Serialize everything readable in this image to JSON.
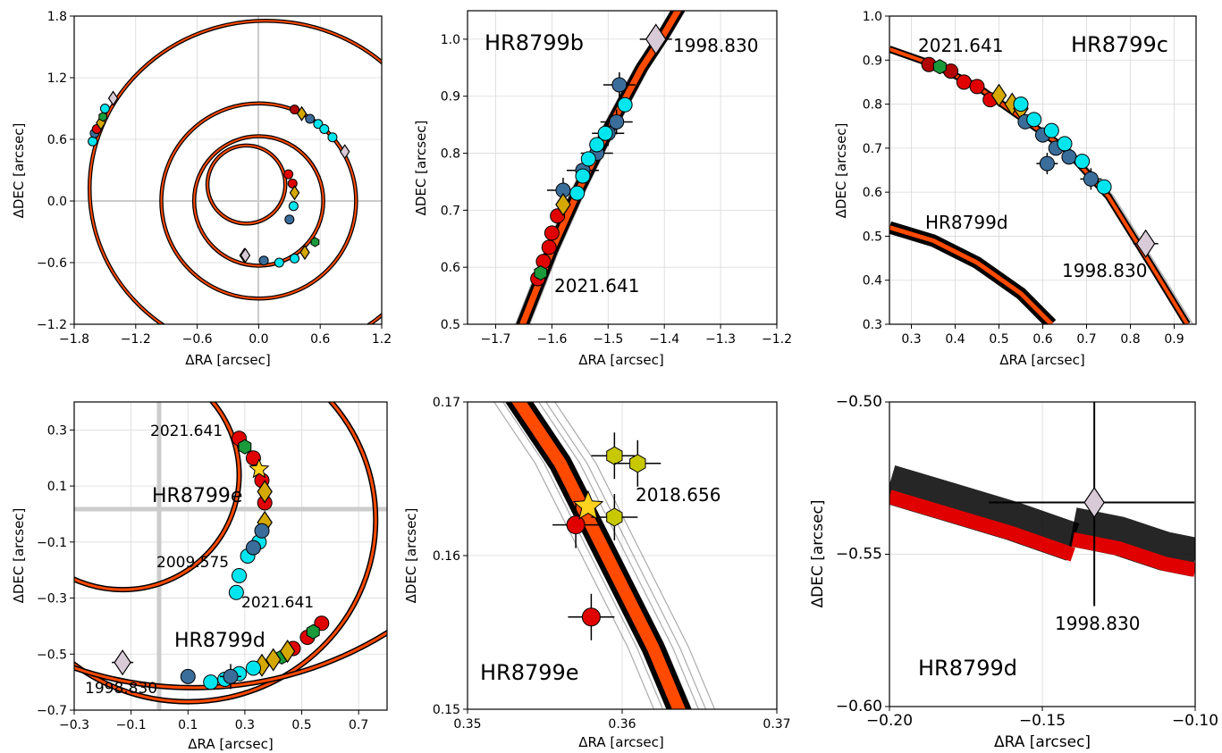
{
  "colors": {
    "orbit_outline": "#000000",
    "orbit_fill": "#ff4a00",
    "orbit_red": "#e00000",
    "old_astrometry": "#3a6d9a",
    "new_astrometry": "#00e5ee",
    "red_points": "#e00000",
    "dark_red_points": "#b00000",
    "gold_diamonds": "#d4a800",
    "green_hexagons": "#1a9a3a",
    "yellow_hexagons": "#c8c800",
    "star": "#ffd21f",
    "first_epoch_diamond": "#d8cad6"
  },
  "chart_data": [
    {
      "type": "scatter",
      "panel": "all-planets",
      "xlabel": "ΔRA [arcsec]",
      "ylabel": "ΔDEC [arcsec]",
      "xlim": [
        -1.8,
        1.2
      ],
      "ylim": [
        -1.2,
        1.8
      ],
      "xticks": [
        "−1.8",
        "−1.2",
        "−0.6",
        "0.0",
        "0.6",
        "1.2"
      ],
      "yticks": [
        "−1.2",
        "−0.6",
        "0.0",
        "0.6",
        "1.2",
        "1.8"
      ],
      "grid": true,
      "orbits": [
        {
          "planet": "b",
          "semi_major": 1.72,
          "center": [
            0.07,
            0.12
          ]
        },
        {
          "planet": "c",
          "semi_major": 0.95,
          "center": [
            0.0,
            0.0
          ]
        },
        {
          "planet": "d",
          "semi_major": 0.63,
          "center": [
            0.0,
            0.0
          ]
        },
        {
          "planet": "e",
          "semi_major": 0.38,
          "center": [
            -0.12,
            0.16
          ]
        }
      ],
      "series": [
        {
          "group": "b",
          "points": [
            [
              -1.62,
              0.58
            ],
            [
              -1.6,
              0.66
            ],
            [
              -1.58,
              0.7
            ],
            [
              -1.54,
              0.76
            ],
            [
              -1.52,
              0.82
            ],
            [
              -1.5,
              0.9
            ]
          ]
        },
        {
          "group": "c",
          "points": [
            [
              0.35,
              0.89
            ],
            [
              0.42,
              0.85
            ],
            [
              0.5,
              0.8
            ],
            [
              0.58,
              0.75
            ],
            [
              0.64,
              0.7
            ],
            [
              0.72,
              0.62
            ]
          ]
        },
        {
          "group": "d",
          "points": [
            [
              0.05,
              -0.58
            ],
            [
              0.2,
              -0.6
            ],
            [
              0.35,
              -0.56
            ],
            [
              0.45,
              -0.5
            ],
            [
              0.55,
              -0.4
            ]
          ]
        },
        {
          "group": "e",
          "points": [
            [
              0.29,
              0.26
            ],
            [
              0.33,
              0.17
            ],
            [
              0.35,
              0.08
            ],
            [
              0.34,
              -0.05
            ],
            [
              0.3,
              -0.18
            ]
          ]
        }
      ],
      "first_epoch": [
        [
          -1.42,
          1.0
        ],
        [
          0.84,
          0.48
        ],
        [
          -0.14,
          -0.53
        ],
        [
          -0.13,
          -0.53
        ]
      ]
    },
    {
      "type": "scatter",
      "panel": "HR8799b",
      "title": "HR8799b",
      "xlabel": "ΔRA [arcsec]",
      "ylabel": "ΔDEC [arcsec]",
      "xlim": [
        -1.75,
        -1.2
      ],
      "ylim": [
        0.5,
        1.05
      ],
      "xticks": [
        "−1.7",
        "−1.6",
        "−1.5",
        "−1.4",
        "−1.3",
        "−1.2"
      ],
      "yticks": [
        "0.5",
        "0.6",
        "0.7",
        "0.8",
        "0.9",
        "1.0"
      ],
      "grid": true,
      "annotations": [
        "1998.830",
        "2021.641"
      ],
      "series": [
        {
          "name": "old",
          "points": [
            [
              -1.58,
              0.735
            ],
            [
              -1.545,
              0.77
            ],
            [
              -1.52,
              0.8
            ],
            [
              -1.5,
              0.835
            ],
            [
              -1.485,
              0.855
            ],
            [
              -1.48,
              0.92
            ]
          ]
        },
        {
          "name": "new",
          "points": [
            [
              -1.555,
              0.73
            ],
            [
              -1.545,
              0.76
            ],
            [
              -1.535,
              0.79
            ],
            [
              -1.52,
              0.815
            ],
            [
              -1.505,
              0.835
            ],
            [
              -1.47,
              0.885
            ]
          ]
        },
        {
          "name": "red",
          "points": [
            [
              -1.625,
              0.58
            ],
            [
              -1.615,
              0.61
            ],
            [
              -1.605,
              0.635
            ],
            [
              -1.6,
              0.66
            ],
            [
              -1.59,
              0.69
            ]
          ]
        },
        {
          "name": "gold",
          "points": [
            [
              -1.58,
              0.71
            ]
          ]
        },
        {
          "name": "green",
          "points": [
            [
              -1.62,
              0.59
            ]
          ]
        },
        {
          "name": "first",
          "points": [
            [
              -1.415,
              1.0
            ]
          ]
        }
      ]
    },
    {
      "type": "scatter",
      "panel": "HR8799c",
      "title": "HR8799c",
      "xlabel": "ΔRA [arcsec]",
      "ylabel": "ΔDEC [arcsec]",
      "xlim": [
        0.25,
        0.95
      ],
      "ylim": [
        0.3,
        1.0
      ],
      "xticks": [
        "0.3",
        "0.4",
        "0.5",
        "0.6",
        "0.7",
        "0.8",
        "0.9"
      ],
      "yticks": [
        "0.3",
        "0.4",
        "0.5",
        "0.6",
        "0.7",
        "0.8",
        "0.9",
        "1.0"
      ],
      "grid": true,
      "annotations": [
        "2021.641",
        "1998.830",
        "HR8799d"
      ],
      "series": [
        {
          "name": "dark_red",
          "points": [
            [
              0.34,
              0.89
            ],
            [
              0.39,
              0.875
            ]
          ]
        },
        {
          "name": "red",
          "points": [
            [
              0.42,
              0.85
            ],
            [
              0.45,
              0.84
            ],
            [
              0.48,
              0.81
            ]
          ]
        },
        {
          "name": "green",
          "points": [
            [
              0.365,
              0.885
            ]
          ]
        },
        {
          "name": "gold",
          "points": [
            [
              0.5,
              0.82
            ],
            [
              0.53,
              0.8
            ],
            [
              0.55,
              0.79
            ]
          ]
        },
        {
          "name": "old",
          "points": [
            [
              0.56,
              0.76
            ],
            [
              0.6,
              0.73
            ],
            [
              0.63,
              0.7
            ],
            [
              0.66,
              0.68
            ],
            [
              0.61,
              0.665
            ],
            [
              0.71,
              0.63
            ]
          ]
        },
        {
          "name": "new",
          "points": [
            [
              0.55,
              0.8
            ],
            [
              0.58,
              0.765
            ],
            [
              0.62,
              0.74
            ],
            [
              0.65,
              0.71
            ],
            [
              0.69,
              0.67
            ],
            [
              0.74,
              0.612
            ]
          ]
        },
        {
          "name": "first",
          "points": [
            [
              0.835,
              0.483
            ]
          ]
        }
      ]
    },
    {
      "type": "scatter",
      "panel": "HR8799d-e",
      "xlabel": "ΔRA [arcsec]",
      "ylabel": "ΔDEC [arcsec]",
      "xlim": [
        -0.3,
        0.8
      ],
      "ylim": [
        -0.7,
        0.4
      ],
      "xticks": [
        "−0.3",
        "−0.1",
        "0.1",
        "0.3",
        "0.5",
        "0.7"
      ],
      "yticks": [
        "−0.7",
        "−0.5",
        "−0.3",
        "−0.1",
        "0.1",
        "0.3"
      ],
      "grid": true,
      "annotations": [
        "2021.641",
        "HR8799e",
        "2009.575",
        "2021.641",
        "HR8799d",
        "1998.830"
      ],
      "series": [
        {
          "name": "e_red",
          "points": [
            [
              0.28,
              0.27
            ],
            [
              0.33,
              0.2
            ],
            [
              0.36,
              0.12
            ],
            [
              0.37,
              0.04
            ]
          ]
        },
        {
          "name": "e_green",
          "points": [
            [
              0.3,
              0.24
            ]
          ]
        },
        {
          "name": "e_gold",
          "points": [
            [
              0.37,
              0.08
            ],
            [
              0.37,
              -0.03
            ]
          ]
        },
        {
          "name": "e_star",
          "points": [
            [
              0.35,
              0.16
            ]
          ]
        },
        {
          "name": "e_new",
          "points": [
            [
              0.35,
              -0.1
            ],
            [
              0.31,
              -0.15
            ],
            [
              0.28,
              -0.22
            ],
            [
              0.27,
              -0.28
            ]
          ]
        },
        {
          "name": "e_old",
          "points": [
            [
              0.36,
              -0.06
            ],
            [
              0.33,
              -0.12
            ]
          ]
        },
        {
          "name": "d_red",
          "points": [
            [
              0.57,
              -0.39
            ],
            [
              0.52,
              -0.44
            ],
            [
              0.47,
              -0.48
            ]
          ]
        },
        {
          "name": "d_green",
          "points": [
            [
              0.54,
              -0.42
            ],
            [
              0.43,
              -0.51
            ]
          ]
        },
        {
          "name": "d_gold",
          "points": [
            [
              0.45,
              -0.49
            ],
            [
              0.4,
              -0.52
            ],
            [
              0.36,
              -0.54
            ]
          ]
        },
        {
          "name": "d_new",
          "points": [
            [
              0.18,
              -0.6
            ],
            [
              0.23,
              -0.59
            ],
            [
              0.28,
              -0.57
            ],
            [
              0.33,
              -0.55
            ]
          ]
        },
        {
          "name": "d_old",
          "points": [
            [
              0.1,
              -0.58
            ],
            [
              0.25,
              -0.58
            ]
          ]
        },
        {
          "name": "d_first",
          "points": [
            [
              -0.13,
              -0.53
            ]
          ]
        }
      ]
    },
    {
      "type": "scatter",
      "panel": "HR8799e-zoom",
      "title": "HR8799e",
      "xlabel": "ΔRA [arcsec]",
      "ylabel": "ΔDEC [arcsec]",
      "xlim": [
        0.35,
        0.37
      ],
      "ylim": [
        0.15,
        0.17
      ],
      "xticks": [
        "0.35",
        "0.36",
        "0.37"
      ],
      "yticks": [
        "0.15",
        "0.16",
        "0.17"
      ],
      "grid": true,
      "annotations": [
        "2018.656"
      ],
      "series": [
        {
          "name": "yellow",
          "points": [
            [
              0.3595,
              0.1665
            ],
            [
              0.361,
              0.166
            ],
            [
              0.3595,
              0.1625
            ]
          ]
        },
        {
          "name": "red",
          "points": [
            [
              0.357,
              0.162
            ],
            [
              0.358,
              0.156
            ]
          ]
        },
        {
          "name": "star",
          "points": [
            [
              0.3578,
              0.1632
            ]
          ]
        }
      ]
    },
    {
      "type": "scatter",
      "panel": "HR8799d-zoom",
      "title": "HR8799d",
      "xlabel": "ΔRA [arcsec]",
      "ylabel": "ΔDEC [arcsec]",
      "xlim": [
        -0.2,
        -0.1
      ],
      "ylim": [
        -0.6,
        -0.5
      ],
      "xticks": [
        "−0.20",
        "−0.15",
        "−0.10"
      ],
      "yticks": [
        "−0.60",
        "−0.55",
        "−0.50"
      ],
      "grid": true,
      "annotations": [
        "1998.830"
      ],
      "series": [
        {
          "name": "first",
          "points": [
            [
              -0.133,
              -0.533
            ]
          ]
        }
      ]
    }
  ]
}
